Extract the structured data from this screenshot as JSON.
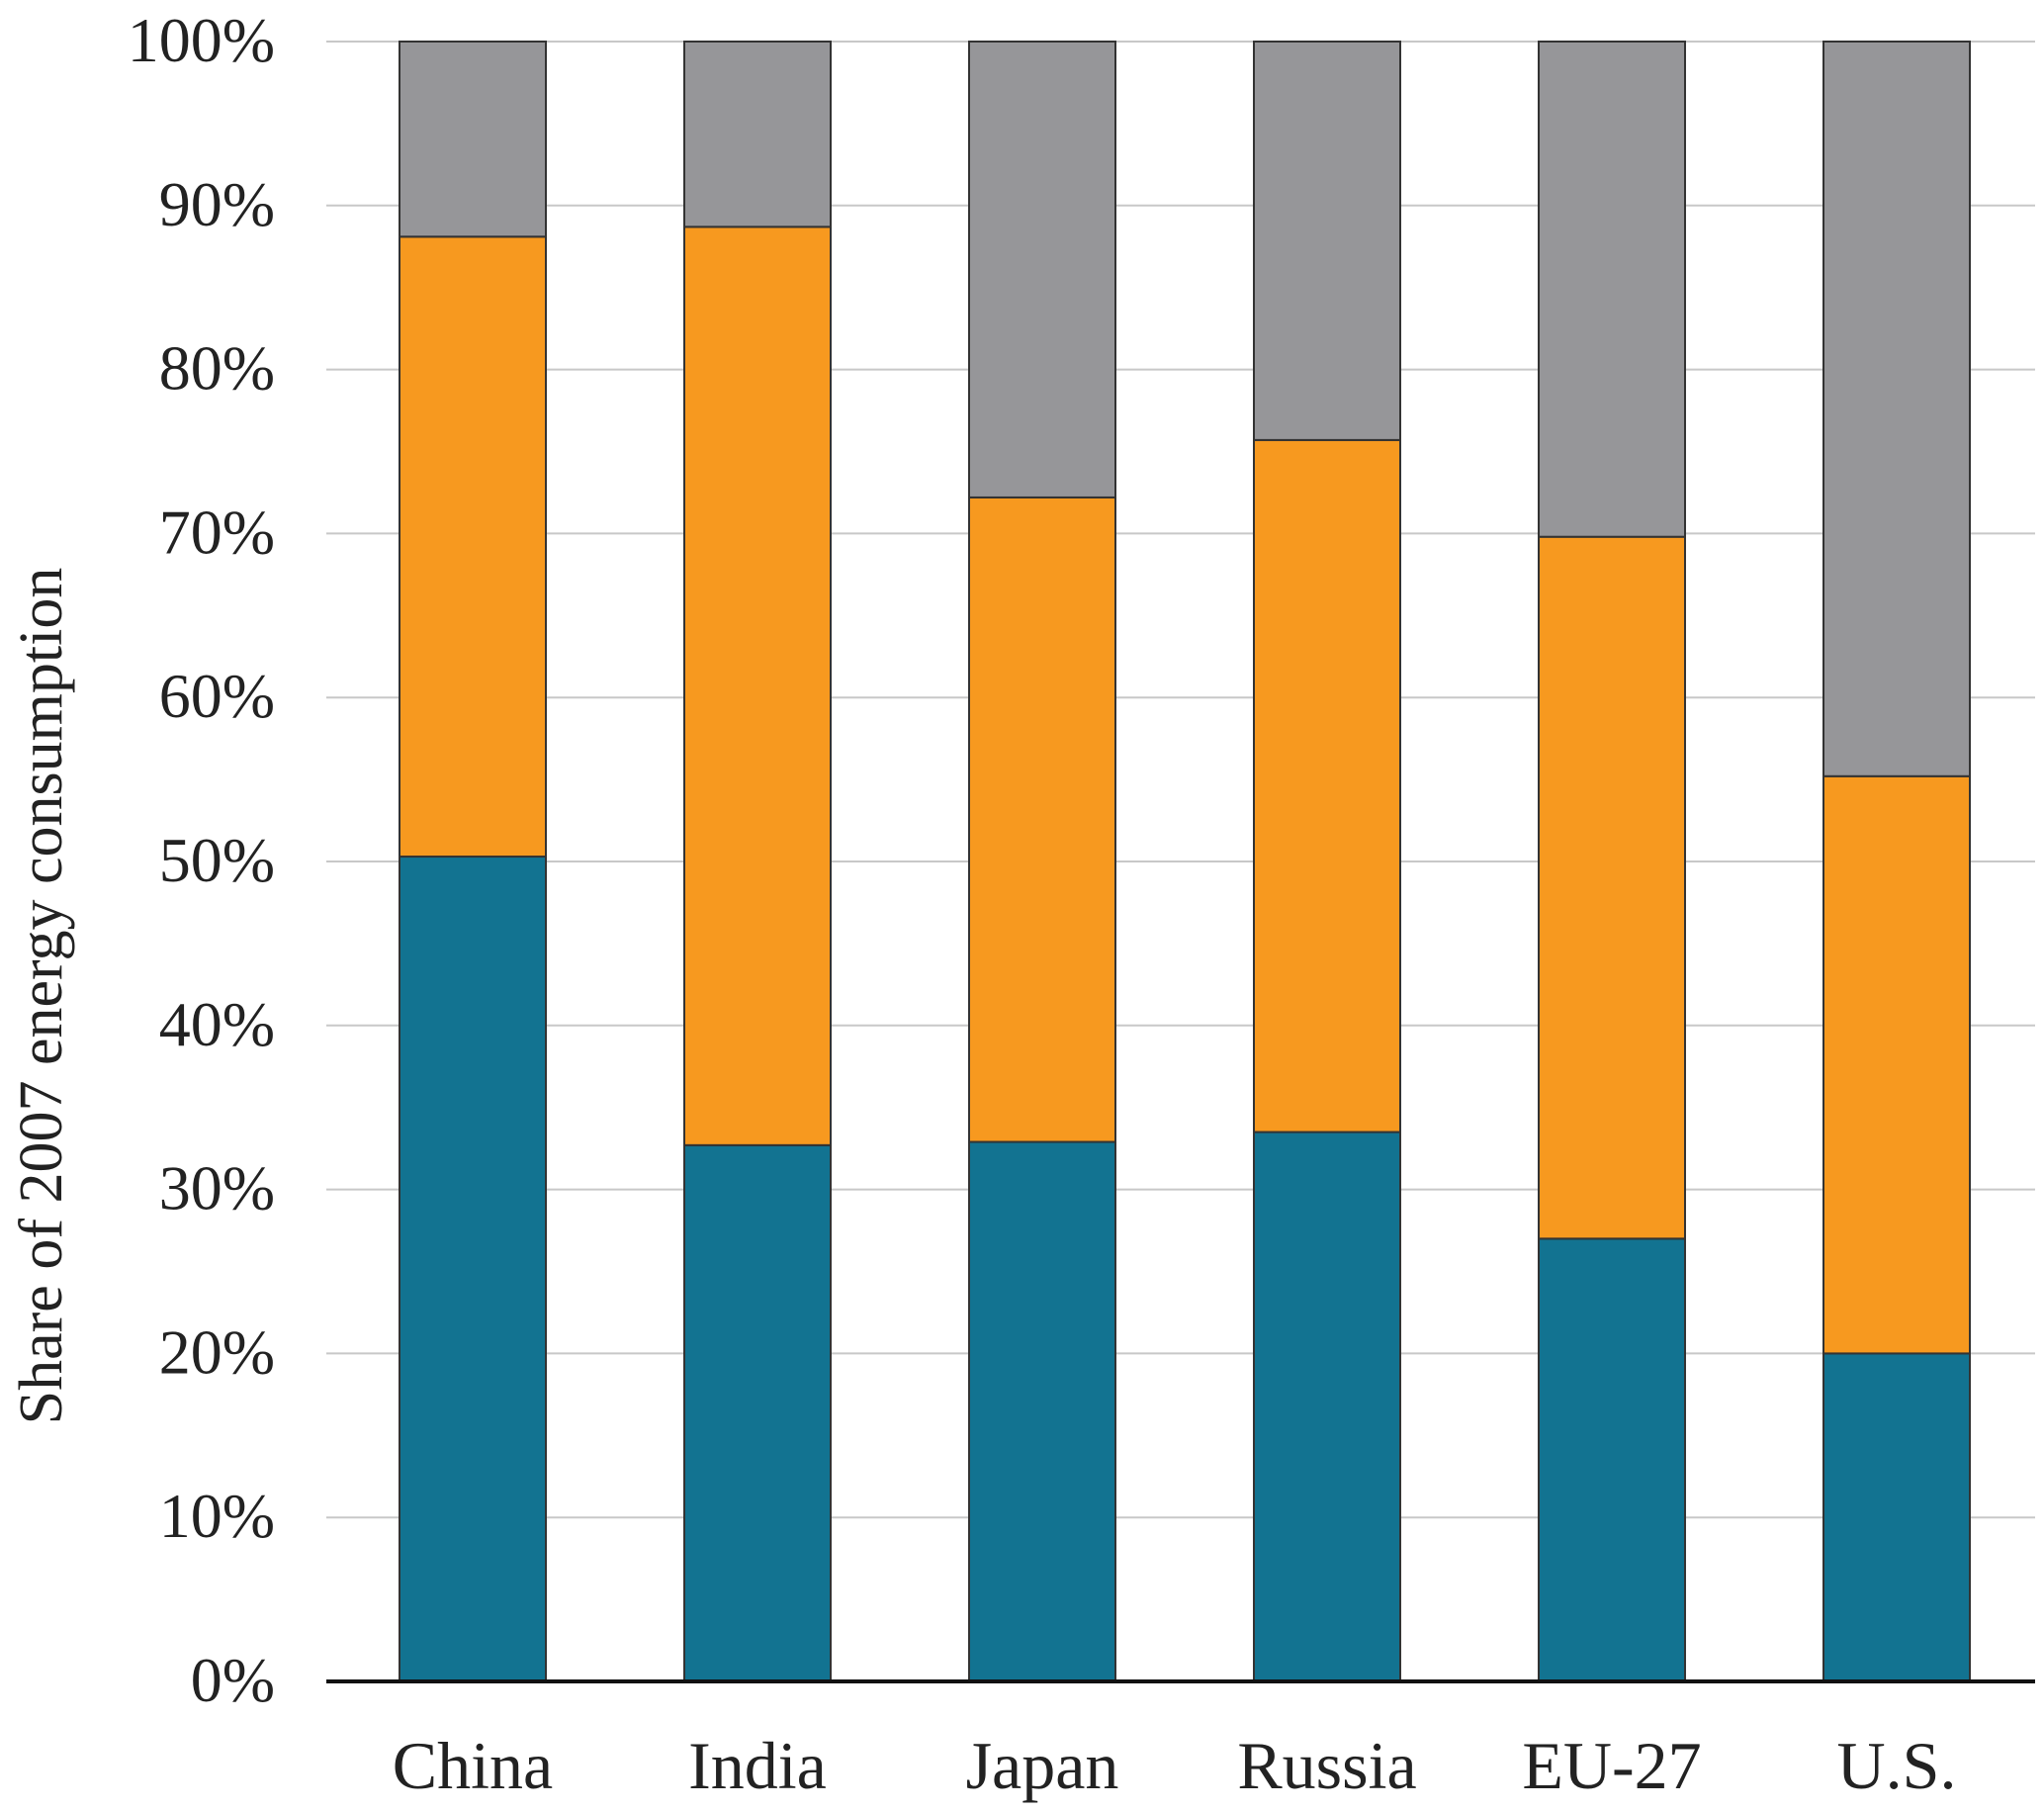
{
  "chart_data": {
    "type": "bar",
    "stacked": true,
    "title": "",
    "xlabel": "",
    "ylabel": "Share of 2007 energy consumption",
    "ylim": [
      0,
      100
    ],
    "y_tick_labels": [
      "0%",
      "10%",
      "20%",
      "30%",
      "40%",
      "50%",
      "60%",
      "70%",
      "80%",
      "90%",
      "100%"
    ],
    "grid": true,
    "legend": "none",
    "categories": [
      "China",
      "India",
      "Japan",
      "Russia",
      "EU-27",
      "U.S."
    ],
    "series": [
      {
        "color": "#127391",
        "values": [
          50.3,
          32.7,
          32.9,
          33.5,
          27.0,
          20.0
        ]
      },
      {
        "color": "#F7991F",
        "values": [
          37.8,
          56.0,
          39.3,
          42.2,
          42.8,
          35.2
        ]
      },
      {
        "color": "#969699",
        "values": [
          11.9,
          11.3,
          27.8,
          24.3,
          30.2,
          44.8
        ]
      }
    ]
  }
}
